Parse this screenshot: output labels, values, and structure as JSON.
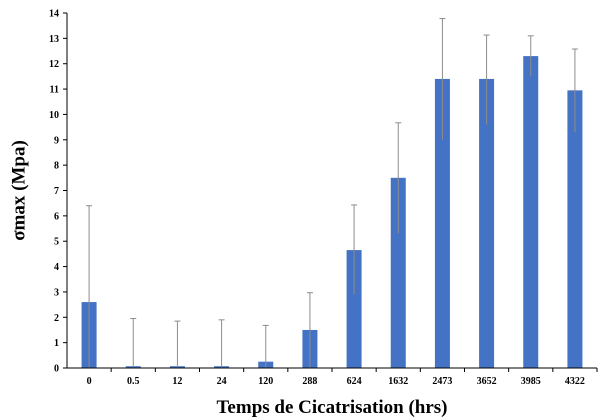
{
  "chart_data": {
    "type": "bar",
    "title": "",
    "xlabel": "Temps de Cicatrisation (hrs)",
    "ylabel": "σmax (Mpa)",
    "categories": [
      "0",
      "0.5",
      "12",
      "24",
      "120",
      "288",
      "624",
      "1632",
      "2473",
      "3652",
      "3985",
      "4322"
    ],
    "values": [
      2.6,
      0.07,
      0.07,
      0.07,
      0.25,
      1.5,
      4.65,
      7.5,
      11.4,
      11.4,
      12.3,
      10.95
    ],
    "error_upper": [
      6.4,
      1.95,
      1.85,
      1.9,
      1.68,
      2.97,
      6.43,
      9.67,
      13.78,
      13.13,
      13.1,
      12.58
    ],
    "error_lower": [
      0.0,
      0.0,
      0.0,
      0.0,
      0.0,
      0.0,
      2.9,
      5.3,
      9.0,
      9.6,
      11.5,
      9.3
    ],
    "ylim": [
      0,
      14
    ],
    "yticks": [
      "0",
      "1",
      "2",
      "3",
      "4",
      "5",
      "6",
      "7",
      "8",
      "9",
      "10",
      "11",
      "12",
      "13",
      "14"
    ],
    "grid": false,
    "bar_color": "#4472C4",
    "error_color": "#8c8c8c"
  }
}
